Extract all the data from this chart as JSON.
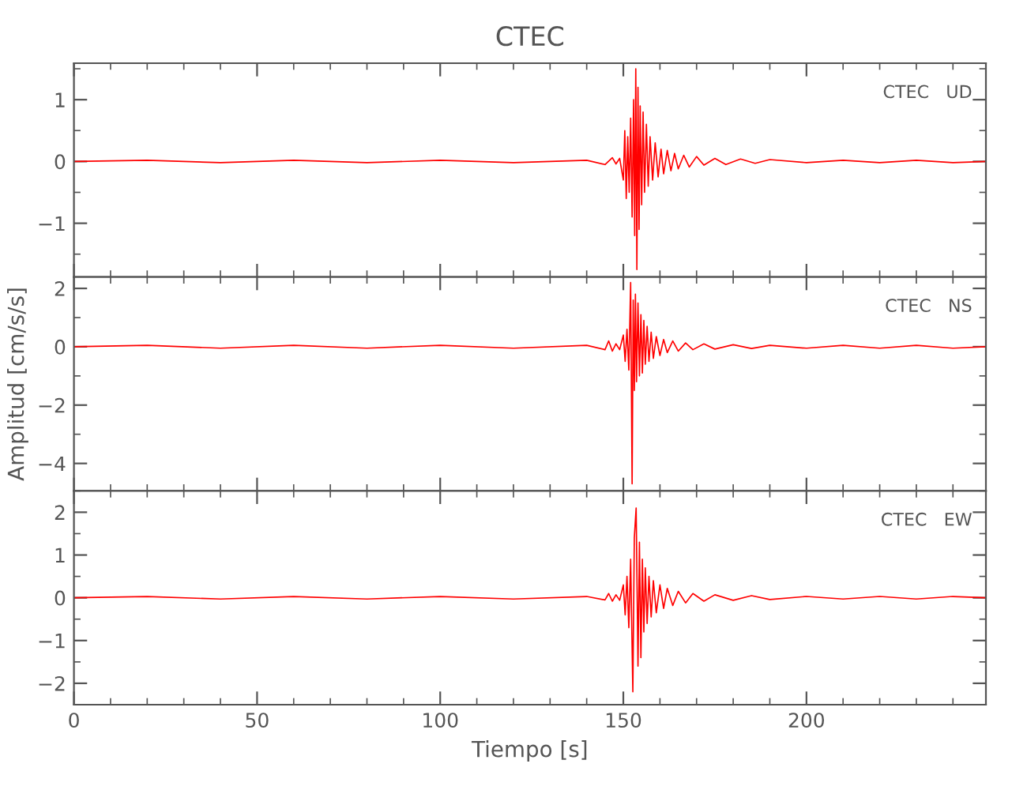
{
  "chart_data": [
    {
      "type": "line",
      "title": "CTEC",
      "annotations": [
        "CTEC   UD"
      ],
      "tick_labels": "y",
      "xlim": [
        0,
        249
      ],
      "xticks": [
        0,
        50,
        100,
        150,
        200
      ],
      "ylim": [
        -1.87,
        1.59
      ],
      "yticks": [
        -1,
        0,
        1
      ],
      "series": [
        {
          "color": "#ff0000",
          "x": [
            0,
            20,
            40,
            60,
            80,
            100,
            120,
            140,
            145,
            147,
            148,
            149,
            150,
            150.4,
            150.8,
            151.2,
            151.6,
            152,
            152.4,
            152.8,
            153.1,
            153.4,
            153.7,
            154,
            154.3,
            154.6,
            155,
            155.4,
            155.8,
            156.3,
            156.8,
            157.3,
            158,
            158.7,
            159.5,
            160.3,
            161,
            162,
            163,
            164,
            165,
            166.5,
            168,
            170,
            172,
            175,
            178,
            182,
            186,
            190,
            200,
            210,
            220,
            230,
            240,
            249
          ],
          "values": [
            0,
            0.02,
            -0.02,
            0.02,
            -0.02,
            0.02,
            -0.02,
            0.02,
            -0.05,
            0.06,
            -0.04,
            0.05,
            -0.3,
            0.5,
            -0.6,
            0.4,
            -0.5,
            0.7,
            -0.9,
            1.0,
            -1.2,
            1.5,
            -1.75,
            1.2,
            -1.1,
            0.9,
            -0.7,
            0.8,
            -0.5,
            0.6,
            -0.4,
            0.4,
            -0.3,
            0.3,
            -0.25,
            0.2,
            -0.2,
            0.18,
            -0.15,
            0.13,
            -0.12,
            0.1,
            -0.09,
            0.08,
            -0.06,
            0.05,
            -0.05,
            0.04,
            -0.03,
            0.03,
            -0.02,
            0.02,
            -0.02,
            0.02,
            -0.02,
            0
          ]
        }
      ]
    },
    {
      "type": "line",
      "ylabel": "Amplitud [cm/s/s]",
      "annotations": [
        "CTEC   NS"
      ],
      "tick_labels": "y",
      "xlim": [
        0,
        249
      ],
      "xticks": [
        0,
        50,
        100,
        150,
        200
      ],
      "ylim": [
        -4.94,
        2.39
      ],
      "yticks": [
        -4,
        -2,
        0,
        2
      ],
      "series": [
        {
          "color": "#ff0000",
          "x": [
            0,
            20,
            40,
            60,
            80,
            100,
            120,
            140,
            145,
            146,
            147,
            148,
            149,
            150,
            150.5,
            151,
            151.5,
            152,
            152.4,
            152.7,
            153,
            153.3,
            153.6,
            154,
            154.4,
            154.8,
            155.2,
            155.6,
            156,
            156.5,
            157,
            157.6,
            158.2,
            159,
            160,
            161,
            162,
            163.5,
            165,
            167,
            169,
            172,
            175,
            180,
            185,
            190,
            200,
            210,
            220,
            230,
            240,
            249
          ],
          "values": [
            0,
            0.05,
            -0.05,
            0.05,
            -0.05,
            0.05,
            -0.05,
            0.05,
            -0.1,
            0.2,
            -0.15,
            0.1,
            -0.1,
            0.4,
            -0.5,
            0.6,
            -0.8,
            2.2,
            -4.7,
            1.6,
            -1.5,
            1.8,
            -1.2,
            1.5,
            -1.0,
            1.1,
            -0.9,
            0.9,
            -0.6,
            0.7,
            -0.5,
            0.5,
            -0.4,
            0.35,
            -0.3,
            0.25,
            -0.2,
            0.2,
            -0.15,
            0.13,
            -0.1,
            0.1,
            -0.08,
            0.07,
            -0.06,
            0.05,
            -0.05,
            0.05,
            -0.05,
            0.05,
            -0.05,
            0
          ]
        }
      ]
    },
    {
      "type": "line",
      "xlabel": "Tiempo [s]",
      "annotations": [
        "CTEC   EW"
      ],
      "xlim": [
        0,
        249
      ],
      "xticks": [
        0,
        50,
        100,
        150,
        200
      ],
      "ylim": [
        -2.5,
        2.5
      ],
      "yticks": [
        -2,
        -1,
        0,
        1,
        2
      ],
      "series": [
        {
          "color": "#ff0000",
          "x": [
            0,
            20,
            40,
            60,
            80,
            100,
            120,
            140,
            145,
            146,
            147,
            148,
            149,
            150,
            150.5,
            151,
            151.5,
            152,
            152.6,
            153,
            153.5,
            154,
            154.4,
            154.8,
            155.2,
            155.6,
            156,
            156.5,
            157,
            157.6,
            158.2,
            159,
            160,
            161,
            162,
            163.5,
            165,
            167,
            169,
            172,
            175,
            180,
            185,
            190,
            200,
            210,
            220,
            230,
            240,
            249
          ],
          "values": [
            0,
            0.03,
            -0.03,
            0.03,
            -0.03,
            0.03,
            -0.03,
            0.03,
            -0.05,
            0.1,
            -0.08,
            0.07,
            -0.06,
            0.3,
            -0.4,
            0.5,
            -0.7,
            0.9,
            -2.2,
            1.4,
            2.1,
            -1.6,
            1.3,
            -1.4,
            0.9,
            -0.8,
            0.7,
            -0.6,
            0.5,
            -0.45,
            0.4,
            -0.35,
            0.3,
            -0.25,
            0.22,
            -0.18,
            0.15,
            -0.12,
            0.1,
            -0.08,
            0.07,
            -0.06,
            0.05,
            -0.04,
            0.03,
            -0.03,
            0.03,
            -0.03,
            0.03,
            0
          ]
        }
      ]
    }
  ]
}
